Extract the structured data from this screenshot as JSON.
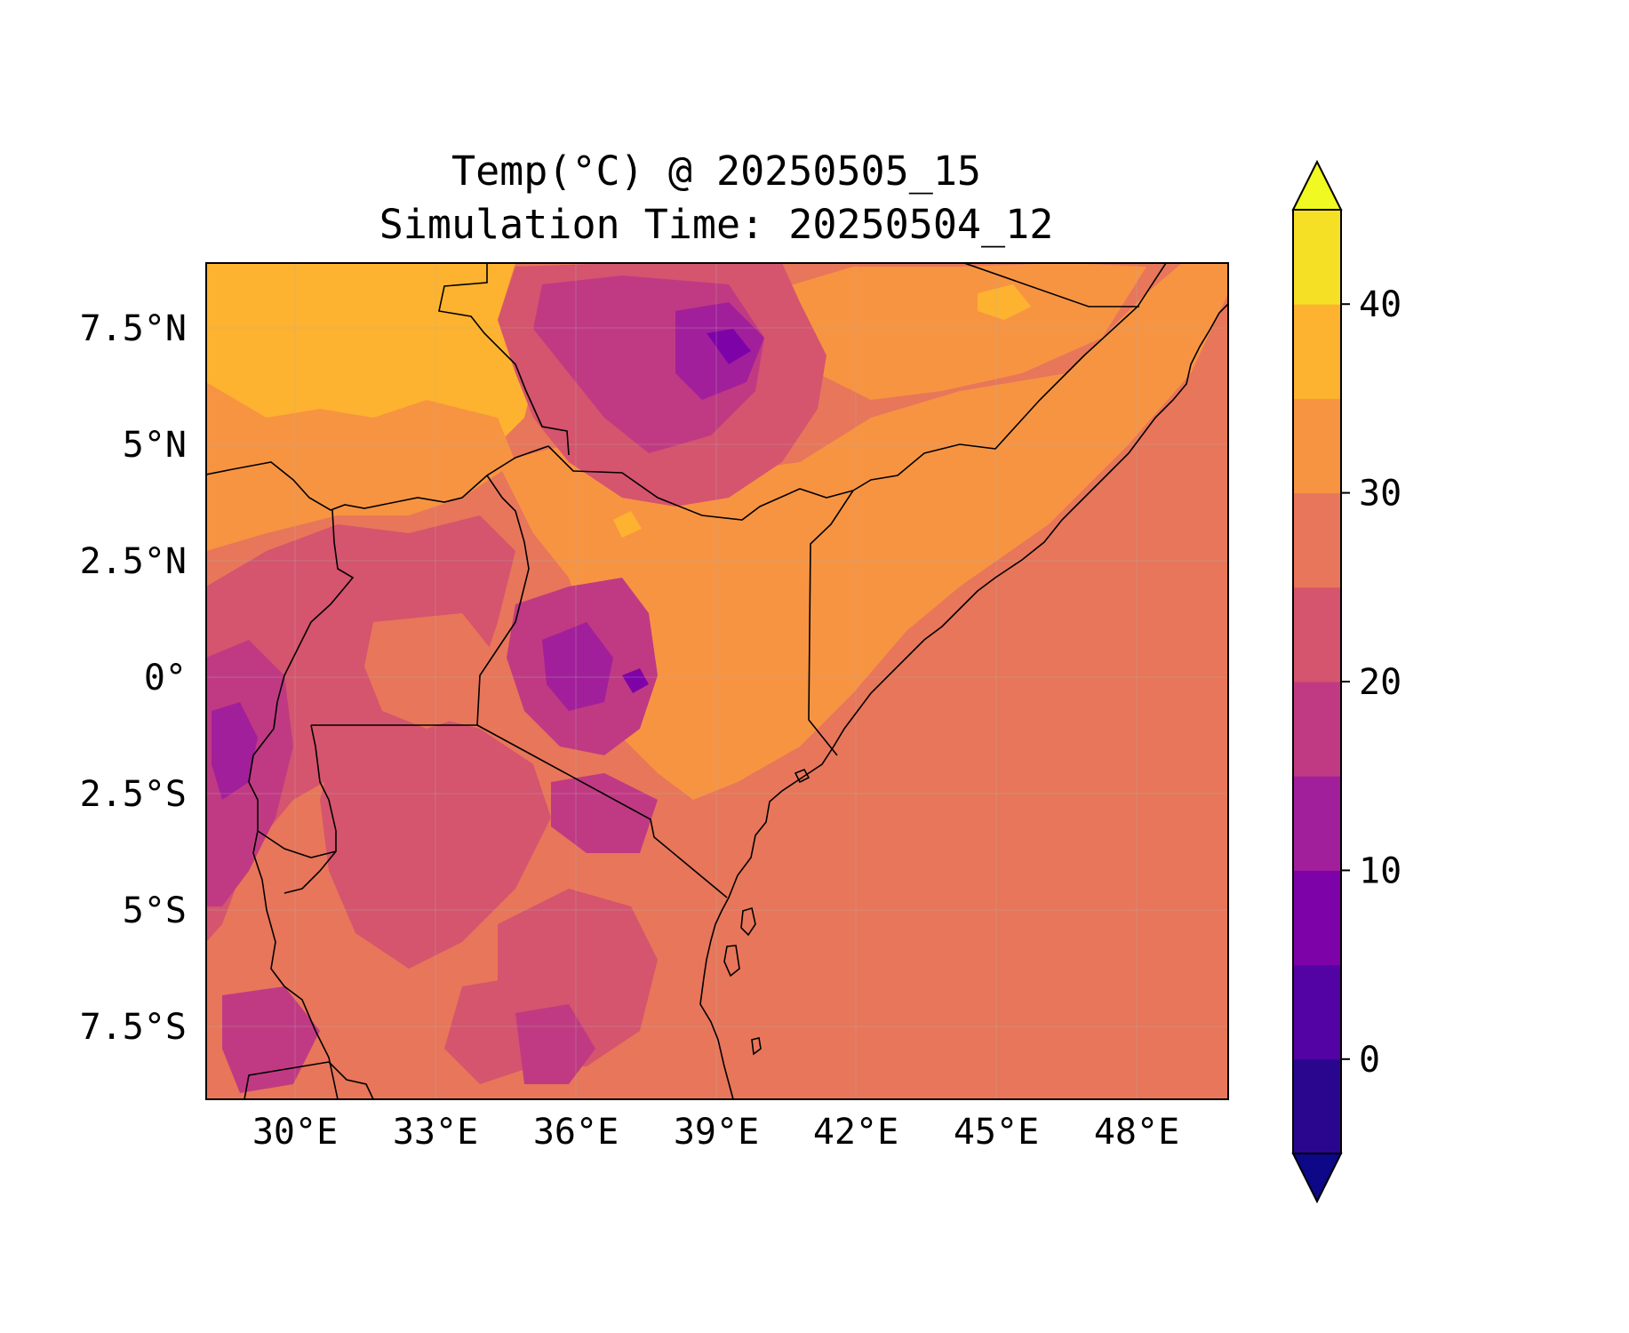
{
  "title_line1": "Temp(°C) @ 20250505_15",
  "title_line2": "Simulation Time: 20250504_12",
  "map": {
    "lon_range": [
      27.5,
      49.4
    ],
    "lat_range": [
      -9,
      8.9
    ],
    "x_ticks": [
      {
        "value": 30,
        "label": "30°E"
      },
      {
        "value": 33,
        "label": "33°E"
      },
      {
        "value": 36,
        "label": "36°E"
      },
      {
        "value": 39,
        "label": "39°E"
      },
      {
        "value": 42,
        "label": "42°E"
      },
      {
        "value": 45,
        "label": "45°E"
      },
      {
        "value": 48,
        "label": "48°E"
      }
    ],
    "y_ticks": [
      {
        "value": 7.5,
        "label": "7.5°N"
      },
      {
        "value": 5,
        "label": "5°N"
      },
      {
        "value": 2.5,
        "label": "2.5°N"
      },
      {
        "value": 0,
        "label": "0°"
      },
      {
        "value": -2.5,
        "label": "2.5°S"
      },
      {
        "value": -5,
        "label": "5°S"
      },
      {
        "value": -7.5,
        "label": "7.5°S"
      }
    ],
    "gridlines": true
  },
  "colorbar": {
    "min": -5,
    "max": 45,
    "extend": "both",
    "ticks": [
      {
        "value": 0,
        "label": "0"
      },
      {
        "value": 10,
        "label": "10"
      },
      {
        "value": 20,
        "label": "20"
      },
      {
        "value": 30,
        "label": "30"
      },
      {
        "value": 40,
        "label": "40"
      }
    ],
    "levels": [
      {
        "from": -5,
        "to": 0,
        "color": "#2a068f"
      },
      {
        "from": 0,
        "to": 5,
        "color": "#5302a3"
      },
      {
        "from": 5,
        "to": 10,
        "color": "#7d03a8"
      },
      {
        "from": 10,
        "to": 15,
        "color": "#a21f9b"
      },
      {
        "from": 15,
        "to": 20,
        "color": "#c03a83"
      },
      {
        "from": 20,
        "to": 25,
        "color": "#d5546e"
      },
      {
        "from": 25,
        "to": 30,
        "color": "#e8765a"
      },
      {
        "from": 30,
        "to": 35,
        "color": "#f79442"
      },
      {
        "from": 35,
        "to": 40,
        "color": "#fdb32f"
      },
      {
        "from": 40,
        "to": 45,
        "color": "#f5e026"
      }
    ],
    "under_color": "#0d0887",
    "over_color": "#f0f921"
  }
}
